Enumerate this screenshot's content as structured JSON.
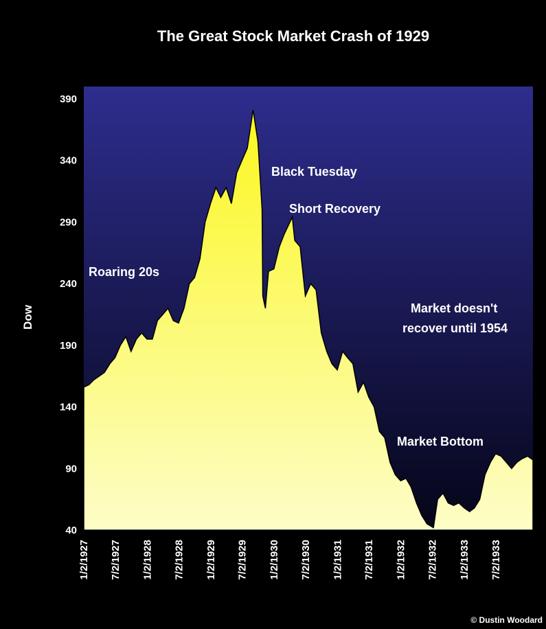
{
  "chart_data": {
    "type": "area",
    "title": "The Great Stock Market Crash of 1929",
    "ylabel": "Dow",
    "xlabel": "",
    "ylim": [
      40,
      400
    ],
    "yticks": [
      40,
      90,
      140,
      190,
      240,
      290,
      340,
      390
    ],
    "xticks": [
      "1/2/1927",
      "7/2/1927",
      "1/2/1928",
      "7/2/1928",
      "1/2/1929",
      "7/2/1929",
      "1/2/1930",
      "7/2/1930",
      "1/2/1931",
      "7/2/1931",
      "1/2/1932",
      "7/2/1932",
      "1/2/1933",
      "7/2/1933"
    ],
    "x_range": [
      "1927-01-02",
      "1934-02-01"
    ],
    "grid": false,
    "colors": {
      "background": "#000000",
      "plot_top": "#2e2d8e",
      "plot_bottom": "#050518",
      "area_top": "#fbf71f",
      "area_bottom": "#fdfdc8",
      "text": "#ffffff"
    },
    "series": [
      {
        "x": [
          "1927-01-02",
          "1927-02-01",
          "1927-03-01",
          "1927-04-01",
          "1927-05-01",
          "1927-06-01",
          "1927-07-01",
          "1927-08-01",
          "1927-09-01",
          "1927-10-01",
          "1927-11-01",
          "1927-12-01",
          "1928-01-01",
          "1928-02-01",
          "1928-03-01",
          "1928-04-01",
          "1928-05-01",
          "1928-06-01",
          "1928-07-01",
          "1928-08-01",
          "1928-09-01",
          "1928-10-01",
          "1928-11-01",
          "1928-12-01",
          "1929-01-01",
          "1929-02-01",
          "1929-03-01",
          "1929-04-01",
          "1929-05-01",
          "1929-06-01",
          "1929-07-01",
          "1929-08-01",
          "1929-09-03",
          "1929-10-01",
          "1929-10-25",
          "1929-10-29",
          "1929-11-13",
          "1929-12-01",
          "1930-01-01",
          "1930-02-01",
          "1930-03-01",
          "1930-04-17",
          "1930-05-01",
          "1930-06-01",
          "1930-07-01",
          "1930-08-01",
          "1930-09-01",
          "1930-10-01",
          "1930-11-01",
          "1930-12-01",
          "1931-01-01",
          "1931-02-01",
          "1931-03-01",
          "1931-04-01",
          "1931-05-01",
          "1931-06-01",
          "1931-07-01",
          "1931-08-01",
          "1931-09-01",
          "1931-10-01",
          "1931-11-01",
          "1931-12-01",
          "1932-01-01",
          "1932-02-01",
          "1932-03-01",
          "1932-04-01",
          "1932-05-01",
          "1932-06-01",
          "1932-07-08",
          "1932-08-01",
          "1932-09-01",
          "1932-10-01",
          "1932-11-01",
          "1932-12-01",
          "1933-01-01",
          "1933-02-01",
          "1933-03-01",
          "1933-04-01",
          "1933-05-01",
          "1933-06-01",
          "1933-07-01",
          "1933-08-01",
          "1933-09-01",
          "1933-10-01",
          "1933-11-01",
          "1933-12-01",
          "1934-01-01",
          "1934-02-01"
        ],
        "values": [
          156,
          158,
          162,
          165,
          168,
          175,
          180,
          190,
          197,
          185,
          195,
          200,
          195,
          195,
          210,
          215,
          220,
          210,
          208,
          220,
          240,
          245,
          260,
          290,
          305,
          318,
          310,
          318,
          305,
          330,
          340,
          350,
          381,
          355,
          300,
          230,
          220,
          250,
          252,
          270,
          280,
          294,
          275,
          270,
          230,
          240,
          235,
          200,
          185,
          175,
          170,
          185,
          180,
          175,
          152,
          160,
          148,
          140,
          120,
          115,
          95,
          85,
          80,
          82,
          75,
          62,
          52,
          45,
          42,
          65,
          70,
          62,
          60,
          62,
          58,
          55,
          58,
          65,
          85,
          95,
          102,
          100,
          95,
          90,
          95,
          98,
          100,
          97
        ]
      }
    ],
    "annotations": [
      "Roaring 20s",
      "Black Tuesday",
      "Short Recovery",
      "Market doesn't",
      "recover until 1954",
      "Market Bottom"
    ],
    "credit": "© Dustin Woodard"
  }
}
